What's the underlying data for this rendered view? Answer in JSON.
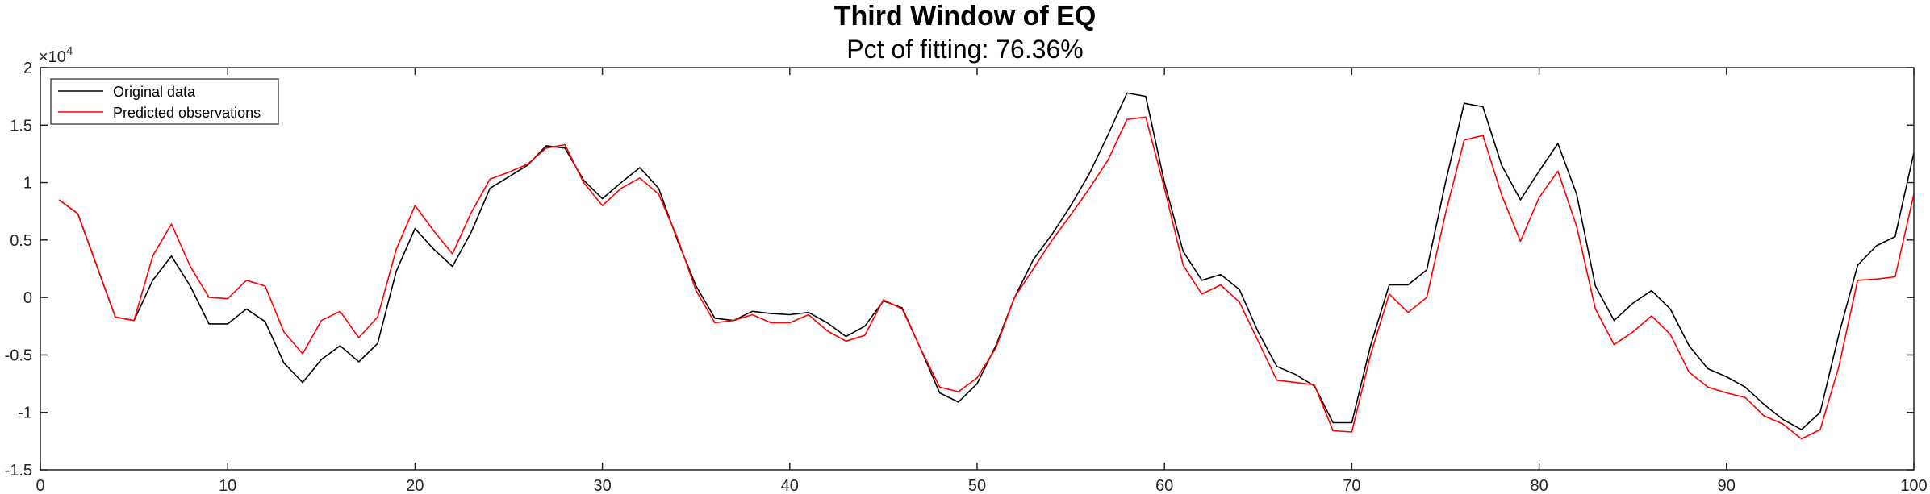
{
  "chart_data": {
    "type": "line",
    "title": "Third Window of EQ",
    "subtitle": "Pct of fitting: 76.36%",
    "xlim": [
      0,
      100
    ],
    "ylim": [
      -1.5,
      2
    ],
    "y_exponent_label": "×10",
    "y_exponent_power": "4",
    "xticks": [
      0,
      10,
      20,
      30,
      40,
      50,
      60,
      70,
      80,
      90,
      100
    ],
    "xtick_labels": [
      "0",
      "10",
      "20",
      "30",
      "40",
      "50",
      "60",
      "70",
      "80",
      "90",
      "100"
    ],
    "yticks": [
      -1.5,
      -1,
      -0.5,
      0,
      0.5,
      1,
      1.5,
      2
    ],
    "ytick_labels": [
      "-1.5",
      "-1",
      "-0.5",
      "0",
      "0.5",
      "1",
      "1.5",
      "2"
    ],
    "grid": false,
    "legend_position": "top-left",
    "series": [
      {
        "name": "Original data",
        "color": "#000000",
        "x": [
          1,
          2,
          3,
          4,
          5,
          6,
          7,
          8,
          9,
          10,
          11,
          12,
          13,
          14,
          15,
          16,
          17,
          18,
          19,
          20,
          21,
          22,
          23,
          24,
          25,
          26,
          27,
          28,
          29,
          30,
          31,
          32,
          33,
          34,
          35,
          36,
          37,
          38,
          39,
          40,
          41,
          42,
          43,
          44,
          45,
          46,
          47,
          48,
          49,
          50,
          51,
          52,
          53,
          54,
          55,
          56,
          57,
          58,
          59,
          60,
          61,
          62,
          63,
          64,
          65,
          66,
          67,
          68,
          69,
          70,
          71,
          72,
          73,
          74,
          75,
          76,
          77,
          78,
          79,
          80,
          81,
          82,
          83,
          84,
          85,
          86,
          87,
          88,
          89,
          90,
          91,
          92,
          93,
          94,
          95,
          96,
          97,
          98,
          99,
          100
        ],
        "y": [
          0.85,
          0.73,
          0.28,
          -0.17,
          -0.2,
          0.15,
          0.36,
          0.1,
          -0.23,
          -0.23,
          -0.1,
          -0.21,
          -0.57,
          -0.74,
          -0.54,
          -0.42,
          -0.56,
          -0.4,
          0.23,
          0.6,
          0.42,
          0.27,
          0.57,
          0.95,
          1.05,
          1.15,
          1.32,
          1.3,
          1.02,
          0.86,
          1.0,
          1.13,
          0.95,
          0.5,
          0.1,
          -0.18,
          -0.2,
          -0.12,
          -0.14,
          -0.15,
          -0.13,
          -0.22,
          -0.34,
          -0.25,
          -0.03,
          -0.09,
          -0.45,
          -0.83,
          -0.91,
          -0.75,
          -0.42,
          0.0,
          0.33,
          0.55,
          0.8,
          1.08,
          1.42,
          1.78,
          1.75,
          1.0,
          0.4,
          0.15,
          0.2,
          0.07,
          -0.3,
          -0.6,
          -0.67,
          -0.77,
          -1.09,
          -1.09,
          -0.42,
          0.11,
          0.11,
          0.24,
          1.0,
          1.69,
          1.66,
          1.15,
          0.85,
          1.1,
          1.34,
          0.9,
          0.1,
          -0.2,
          -0.05,
          0.06,
          -0.1,
          -0.42,
          -0.62,
          -0.69,
          -0.78,
          -0.93,
          -1.06,
          -1.15,
          -1.0,
          -0.32,
          0.28,
          0.45,
          0.53,
          1.26
        ]
      },
      {
        "name": "Predicted observations",
        "color": "#ff0000",
        "x": [
          1,
          2,
          3,
          4,
          5,
          6,
          7,
          8,
          9,
          10,
          11,
          12,
          13,
          14,
          15,
          16,
          17,
          18,
          19,
          20,
          21,
          22,
          23,
          24,
          25,
          26,
          27,
          28,
          29,
          30,
          31,
          32,
          33,
          34,
          35,
          36,
          37,
          38,
          39,
          40,
          41,
          42,
          43,
          44,
          45,
          46,
          47,
          48,
          49,
          50,
          51,
          52,
          53,
          54,
          55,
          56,
          57,
          58,
          59,
          60,
          61,
          62,
          63,
          64,
          65,
          66,
          67,
          68,
          69,
          70,
          71,
          72,
          73,
          74,
          75,
          76,
          77,
          78,
          79,
          80,
          81,
          82,
          83,
          84,
          85,
          86,
          87,
          88,
          89,
          90,
          91,
          92,
          93,
          94,
          95,
          96,
          97,
          98,
          99,
          100
        ],
        "y": [
          0.85,
          0.73,
          0.28,
          -0.17,
          -0.2,
          0.36,
          0.64,
          0.27,
          0.0,
          -0.01,
          0.15,
          0.1,
          -0.3,
          -0.49,
          -0.2,
          -0.12,
          -0.35,
          -0.17,
          0.42,
          0.8,
          0.58,
          0.38,
          0.74,
          1.03,
          1.09,
          1.16,
          1.3,
          1.33,
          1.0,
          0.8,
          0.95,
          1.04,
          0.9,
          0.52,
          0.06,
          -0.22,
          -0.2,
          -0.15,
          -0.22,
          -0.22,
          -0.15,
          -0.29,
          -0.38,
          -0.33,
          -0.02,
          -0.1,
          -0.45,
          -0.78,
          -0.82,
          -0.7,
          -0.44,
          0.0,
          0.25,
          0.5,
          0.72,
          0.95,
          1.2,
          1.55,
          1.57,
          0.95,
          0.28,
          0.03,
          0.11,
          -0.04,
          -0.38,
          -0.72,
          -0.74,
          -0.76,
          -1.16,
          -1.17,
          -0.5,
          0.03,
          -0.13,
          0.0,
          0.73,
          1.37,
          1.41,
          0.89,
          0.49,
          0.87,
          1.1,
          0.62,
          -0.1,
          -0.41,
          -0.3,
          -0.16,
          -0.32,
          -0.65,
          -0.78,
          -0.83,
          -0.87,
          -1.03,
          -1.1,
          -1.23,
          -1.15,
          -0.6,
          0.15,
          0.16,
          0.18,
          0.9
        ]
      }
    ]
  }
}
